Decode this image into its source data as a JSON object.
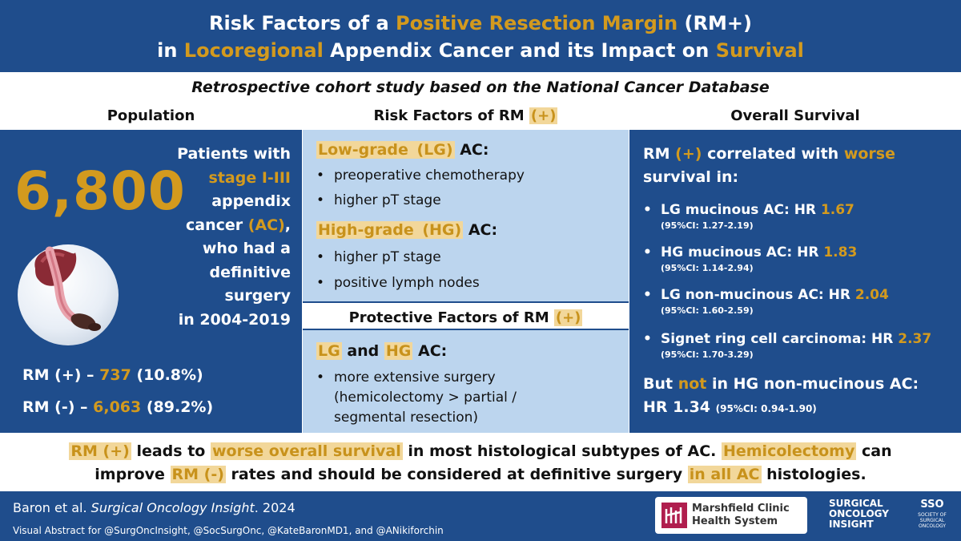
{
  "title": {
    "l1_pre": "Risk Factors of a ",
    "l1_hl": "Positive Resection Margin",
    "l1_post": " (RM+)",
    "l2_pre": "in ",
    "l2_hl1": "Locoregional",
    "l2_mid": " Appendix Cancer and its Impact on ",
    "l2_hl2": "Survival"
  },
  "subtitle": "Retrospective cohort study based on the National Cancer Database",
  "columns": {
    "population": "Population",
    "risk_pre": "Risk Factors of RM ",
    "risk_hl": "(+)",
    "survival": "Overall Survival"
  },
  "population": {
    "count": "6,800",
    "desc_1": "Patients with",
    "desc_2": "stage I-III",
    "desc_3": "appendix",
    "desc_4a": "cancer ",
    "desc_4b": "(AC)",
    "desc_4c": ",",
    "desc_5": "who had a",
    "desc_6": "definitive surgery",
    "desc_7": "in 2004-2019",
    "rm_pos_label": "RM (+) – ",
    "rm_pos_value": "737",
    "rm_pos_pct": " (10.8%)",
    "rm_neg_label": "RM (-) – ",
    "rm_neg_value": "6,063",
    "rm_neg_pct": " (89.2%)"
  },
  "risk": {
    "lg_title": "Low-grade ",
    "lg_abbr": "(LG)",
    "lg_suffix": " AC:",
    "lg_items": [
      "preoperative chemotherapy",
      "higher pT stage"
    ],
    "hg_title": "High-grade ",
    "hg_abbr": "(HG)",
    "hg_suffix": " AC:",
    "hg_items": [
      "higher pT stage",
      "positive lymph nodes"
    ],
    "protective_pre": "Protective Factors of RM ",
    "protective_hl": "(+)",
    "both_lg": "LG",
    "both_and": " and ",
    "both_hg": "HG",
    "both_suffix": " AC:",
    "both_items": [
      "more extensive surgery",
      "(hemicolectomy  > partial /",
      "segmental resection)"
    ]
  },
  "survival": {
    "intro_1a": "RM ",
    "intro_1b": "(+)",
    "intro_1c": " correlated with ",
    "intro_1d": "worse",
    "intro_2": "survival in:",
    "items": [
      {
        "label": "LG mucinous AC: HR ",
        "hr": "1.67",
        "ci": "(95%CI: 1.27-2.19)"
      },
      {
        "label": "HG mucinous AC: HR ",
        "hr": "1.83",
        "ci": "(95%CI: 1.14-2.94)"
      },
      {
        "label": "LG non-mucinous AC: HR ",
        "hr": "2.04",
        "ci": "(95%CI: 1.60-2.59)"
      },
      {
        "label": "Signet ring cell carcinoma: HR ",
        "hr": "2.37",
        "ci": "(95%CI: 1.70-3.29)"
      }
    ],
    "but_a": "But ",
    "but_b": "not",
    "but_c": " in HG non-mucinous AC:",
    "but_hr": "HR 1.34 ",
    "but_ci": "(95%CI: 0.94-1.90)"
  },
  "conclusion": {
    "c1": "RM (+)",
    "c2": " leads to ",
    "c3": "worse overall survival",
    "c4": " in most histological subtypes of AC. ",
    "c5": "Hemicolectomy",
    "c6": " can",
    "c7": "improve ",
    "c8": "RM (-)",
    "c9": " rates and should be considered at definitive surgery ",
    "c10": "in all AC",
    "c11": " histologies."
  },
  "footer": {
    "cite_a": "Baron et al. ",
    "cite_b": "Surgical Oncology Insight",
    "cite_c": ". 2024",
    "credit": "Visual Abstract for @SurgOncInsight, @SocSurgOnc, @KateBaronMD1, and @ANikiforchin",
    "marshfield_1": "Marshfield Clinic",
    "marshfield_2": "Health System",
    "insight_1": "SURGICAL",
    "insight_2": "ONCOLOGY",
    "insight_3": "INSIGHT",
    "sso": "SSO",
    "sso_small": "SOCIETY OF SURGICAL ONCOLOGY"
  },
  "colors": {
    "navy": "#1f4d8c",
    "gold": "#d39a1e",
    "light_blue": "#bcd5ee",
    "highlight": "#f2d79a"
  },
  "icons": [
    "appendix-illustration",
    "marshfield-logo-icon",
    "sso-logo-icon"
  ]
}
